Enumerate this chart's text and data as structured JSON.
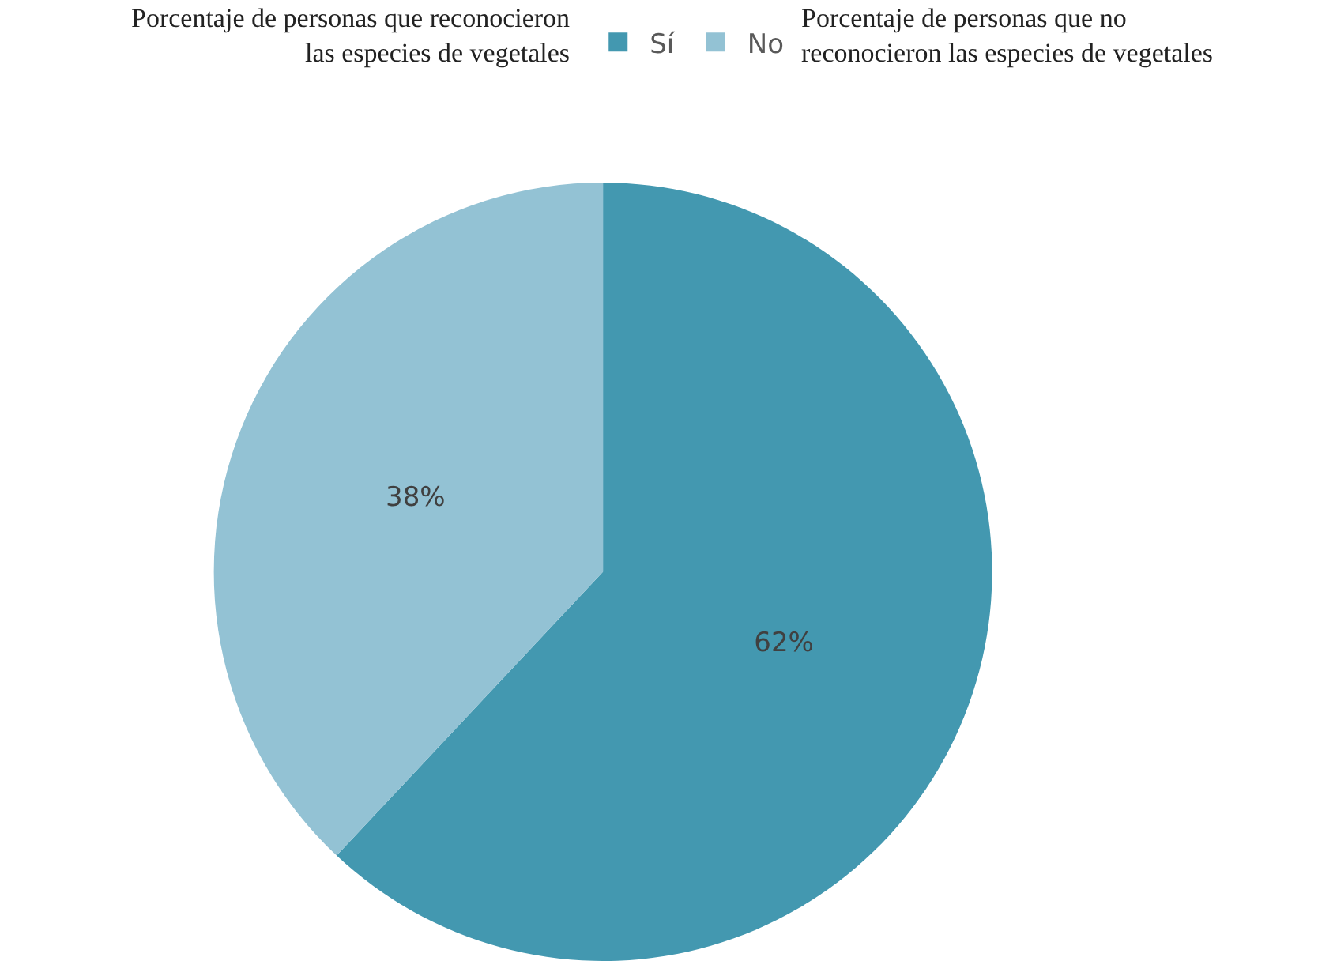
{
  "chart_data": {
    "type": "pie",
    "categories": [
      "Sí",
      "No"
    ],
    "values": [
      62,
      38
    ],
    "colors": [
      "#4398b0",
      "#93c2d4"
    ],
    "value_labels": [
      "62%",
      "38%"
    ],
    "legend": "top",
    "annotations": [
      "Porcentaje de personas que reconocieron las especies de vegetales",
      "Porcentaje de personas que no reconocieron las especies de vegetales"
    ]
  }
}
